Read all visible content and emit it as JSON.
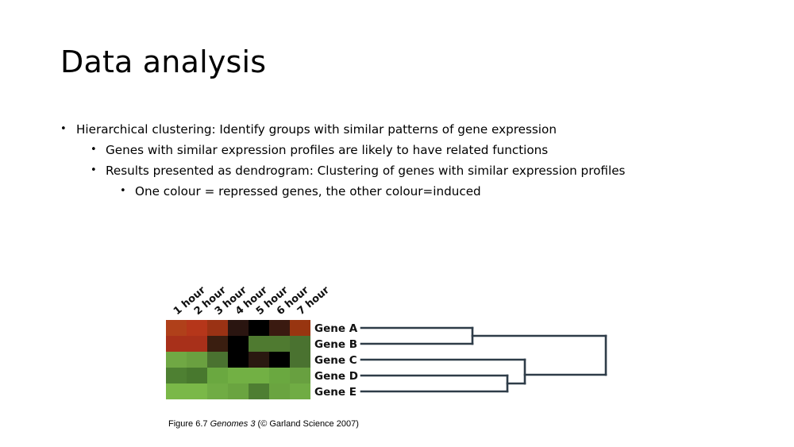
{
  "slide": {
    "title": "Data analysis",
    "bullets": [
      {
        "level": 1,
        "text": "Hierarchical clustering: Identify groups with similar patterns of gene expression"
      },
      {
        "level": 2,
        "text": "Genes with similar expression profiles are likely to have related functions"
      },
      {
        "level": 2,
        "text": "Results presented as dendrogram: Clustering of genes with similar expression profiles"
      },
      {
        "level": 3,
        "text": "One colour = repressed genes, the other colour=induced"
      }
    ]
  },
  "chart_data": {
    "type": "heatmap",
    "columns": [
      "1 hour",
      "2 hour",
      "3 hour",
      "4 hour",
      "5 hour",
      "6 hour",
      "7 hour"
    ],
    "rows": [
      "Gene A",
      "Gene B",
      "Gene C",
      "Gene D",
      "Gene E"
    ],
    "cell_colors": [
      [
        "#b0401a",
        "#b5361a",
        "#9a3214",
        "#2a1510",
        "#000000",
        "#3a1a10",
        "#983510"
      ],
      [
        "#a8301a",
        "#a8301a",
        "#3a1e10",
        "#000000",
        "#4f7a30",
        "#4f7a30",
        "#4a7230"
      ],
      [
        "#70a844",
        "#6aa040",
        "#4a7230",
        "#000000",
        "#2a1810",
        "#000000",
        "#4a7230"
      ],
      [
        "#4e8032",
        "#48782e",
        "#6aa840",
        "#72b044",
        "#72b044",
        "#6aa840",
        "#68a040"
      ],
      [
        "#7ab848",
        "#7ab848",
        "#70ac44",
        "#6aa440",
        "#4e7e32",
        "#6aa440",
        "#70ac44"
      ]
    ],
    "dendrogram": {
      "merges": [
        {
          "joins": [
            "Gene A",
            "Gene B"
          ],
          "order": 2
        },
        {
          "joins": [
            "Gene D",
            "Gene E"
          ],
          "order": 1
        },
        {
          "joins": [
            "Gene C",
            "(Gene D, Gene E)"
          ],
          "order": 3
        },
        {
          "joins": [
            "(Gene A, Gene B)",
            "(Gene C, Gene D, Gene E)"
          ],
          "order": 4
        }
      ],
      "line_color": "#2e3c48"
    }
  },
  "caption": {
    "prefix": "Figure 6.7 ",
    "italic": "Genomes 3",
    "suffix": " (© Garland Science 2007)"
  }
}
